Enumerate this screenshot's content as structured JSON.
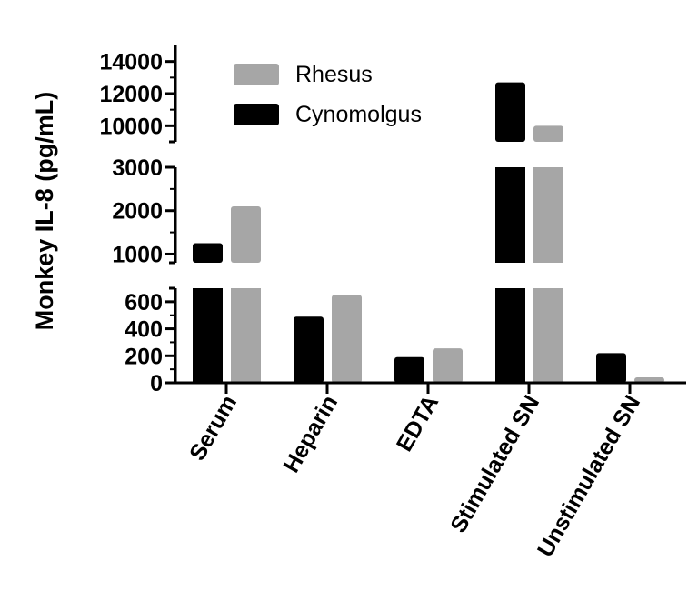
{
  "chart_data": {
    "type": "bar",
    "title": "",
    "xlabel": "",
    "ylabel": "Monkey IL-8 (pg/mL)",
    "categories": [
      "Serum",
      "Heparin",
      "EDTA",
      "Stimulated SN",
      "Unstimulated SN"
    ],
    "series": [
      {
        "name": "Cynomolgus",
        "color": "#000000",
        "values": [
          1250,
          490,
          190,
          12700,
          220
        ]
      },
      {
        "name": "Rhesus",
        "color": "#a6a6a6",
        "values": [
          2100,
          650,
          255,
          10000,
          40
        ]
      }
    ],
    "y_axis_broken": true,
    "y_segments": [
      {
        "range": [
          0,
          700
        ],
        "ticks": [
          0,
          200,
          400,
          600
        ]
      },
      {
        "range": [
          800,
          3000
        ],
        "ticks": [
          1000,
          2000,
          3000
        ]
      },
      {
        "range": [
          9000,
          15000
        ],
        "ticks": [
          10000,
          12000,
          14000
        ]
      }
    ],
    "tick_labels": {
      "seg0": [
        "0",
        "200",
        "400",
        "600"
      ],
      "seg1": [
        "1000",
        "2000",
        "3000"
      ],
      "seg2": [
        "10000",
        "12000",
        "14000"
      ]
    },
    "legend_position": "top-left",
    "legend_order": [
      "Rhesus",
      "Cynomolgus"
    ],
    "grid": false
  }
}
